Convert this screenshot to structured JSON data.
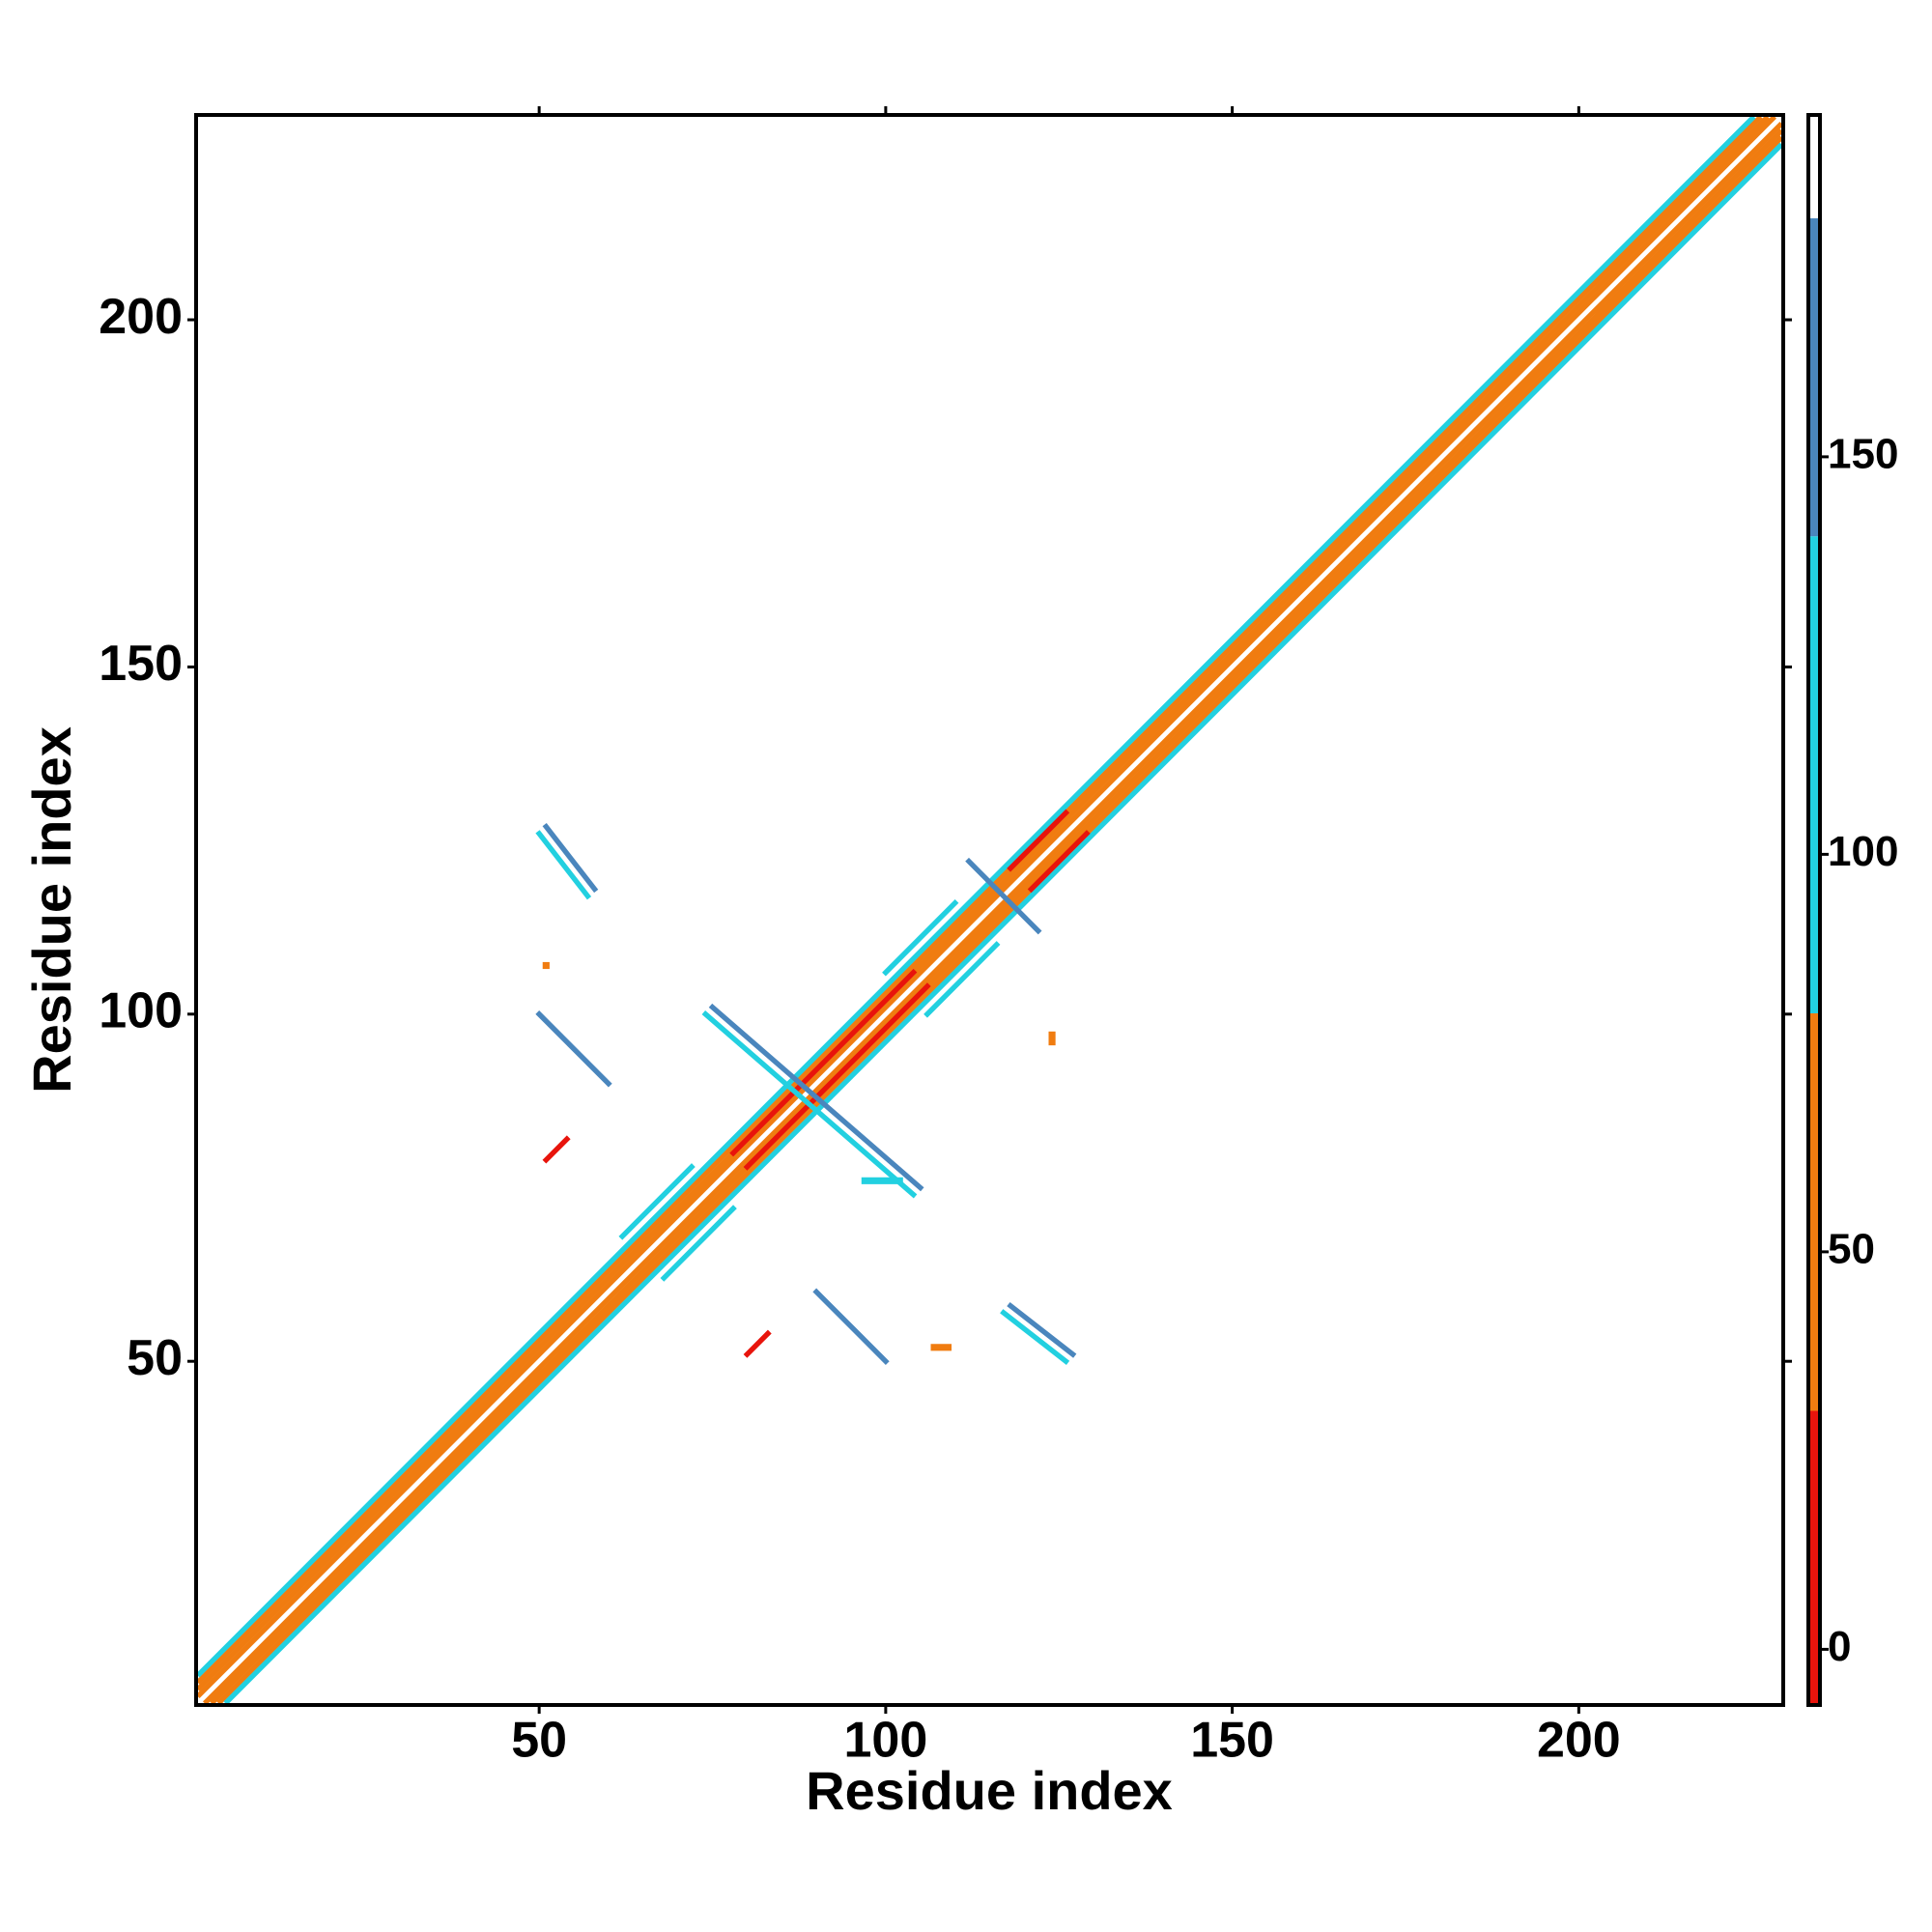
{
  "chart_data": {
    "type": "contact-map",
    "xlabel": "Residue index",
    "ylabel": "Residue index",
    "xlim": [
      0.5,
      229.5
    ],
    "ylim": [
      0.5,
      229.5
    ],
    "xticks": [
      50,
      100,
      150,
      200
    ],
    "yticks": [
      50,
      100,
      150,
      200
    ],
    "segments": [
      {
        "x": [
          1,
          228
        ],
        "y": [
          2,
          229
        ],
        "value": 45
      },
      {
        "x": [
          2,
          229
        ],
        "y": [
          1,
          228
        ],
        "value": 45
      },
      {
        "x": [
          1,
          227
        ],
        "y": [
          3,
          229
        ],
        "value": 65
      },
      {
        "x": [
          3,
          229
        ],
        "y": [
          1,
          227
        ],
        "value": 65
      },
      {
        "x": [
          1,
          226
        ],
        "y": [
          4,
          229
        ],
        "value": 40
      },
      {
        "x": [
          4,
          229
        ],
        "y": [
          1,
          226
        ],
        "value": 40
      },
      {
        "x": [
          1,
          225
        ],
        "y": [
          5,
          229
        ],
        "value": 95
      },
      {
        "x": [
          5,
          229
        ],
        "y": [
          1,
          225
        ],
        "value": 95
      },
      {
        "x": [
          78,
          104
        ],
        "y": [
          80,
          106
        ],
        "value": 5
      },
      {
        "x": [
          80,
          106
        ],
        "y": [
          78,
          104
        ],
        "value": 5
      },
      {
        "x": [
          118,
          126
        ],
        "y": [
          121,
          129
        ],
        "value": 10
      },
      {
        "x": [
          121,
          129
        ],
        "y": [
          118,
          126
        ],
        "value": 10
      },
      {
        "x": [
          100,
          110
        ],
        "y": [
          106,
          116
        ],
        "value": 100
      },
      {
        "x": [
          106,
          116
        ],
        "y": [
          100,
          110
        ],
        "value": 100
      },
      {
        "x": [
          62,
          72
        ],
        "y": [
          68,
          78
        ],
        "value": 100
      },
      {
        "x": [
          68,
          78
        ],
        "y": [
          62,
          72
        ],
        "value": 100
      },
      {
        "x": [
          51,
          58
        ],
        "y": [
          127,
          118
        ],
        "value": 150
      },
      {
        "x": [
          50,
          57
        ],
        "y": [
          126,
          117
        ],
        "value": 110
      },
      {
        "x": [
          118,
          127
        ],
        "y": [
          58,
          51
        ],
        "value": 150
      },
      {
        "x": [
          117,
          126
        ],
        "y": [
          57,
          50
        ],
        "value": 110
      },
      {
        "x": [
          50,
          60
        ],
        "y": [
          100,
          90
        ],
        "value": 150
      },
      {
        "x": [
          90,
          100
        ],
        "y": [
          60,
          50
        ],
        "value": 150
      },
      {
        "x": [
          74,
          104
        ],
        "y": [
          100,
          74
        ],
        "value": 110
      },
      {
        "x": [
          75,
          105
        ],
        "y": [
          101,
          75
        ],
        "value": 150
      },
      {
        "x": [
          112,
          122
        ],
        "y": [
          122,
          112
        ],
        "value": 140
      },
      {
        "x": [
          80,
          83
        ],
        "y": [
          51,
          54
        ],
        "value": 10
      },
      {
        "x": [
          51,
          54
        ],
        "y": [
          79,
          82
        ],
        "value": 10
      },
      {
        "x": [
          51,
          51
        ],
        "y": [
          107,
          107
        ],
        "value": 60
      },
      {
        "x": [
          124,
          124
        ],
        "y": [
          96,
          97
        ],
        "value": 45
      },
      {
        "x": [
          107,
          109
        ],
        "y": [
          52,
          52
        ],
        "value": 60
      },
      {
        "x": [
          97,
          102
        ],
        "y": [
          76,
          76
        ],
        "value": 110
      }
    ],
    "colorbar": {
      "lim": [
        -7,
        193
      ],
      "ticks": [
        0,
        50,
        100,
        150
      ],
      "stops": [
        {
          "from": -7,
          "to": 30,
          "color": "#e8140c"
        },
        {
          "from": 30,
          "to": 80,
          "color": "#f07c10"
        },
        {
          "from": 80,
          "to": 140,
          "color": "#22d0e0"
        },
        {
          "from": 140,
          "to": 180,
          "color": "#4a86bd"
        },
        {
          "from": 180,
          "to": 193,
          "color": "#ffffff"
        }
      ]
    }
  }
}
